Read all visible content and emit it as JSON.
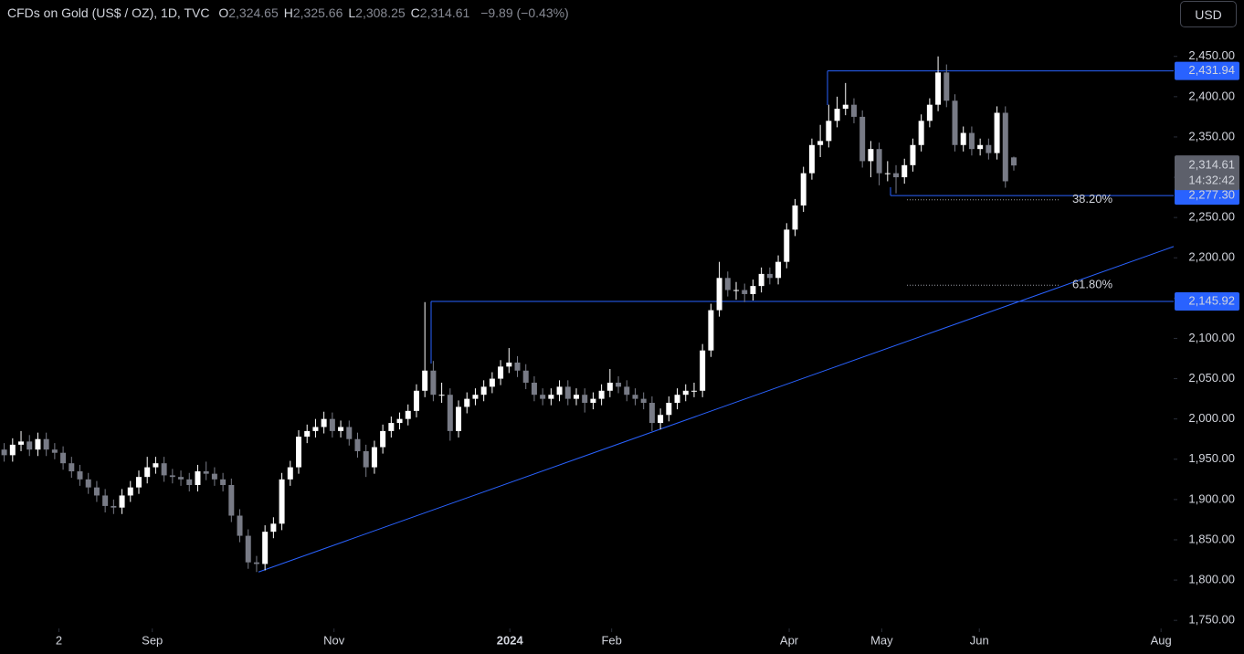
{
  "chart_data": {
    "type": "candlestick",
    "title": "CFDs on Gold (US$ / OZ), 1D, TVC",
    "ohlc_legend": {
      "labels": [
        "O",
        "H",
        "L",
        "C"
      ],
      "values": [
        2324.65,
        2325.66,
        2308.25,
        2314.61
      ],
      "value_labels": [
        "2,324.65",
        "2,325.66",
        "2,308.25",
        "2,314.61"
      ]
    },
    "change": {
      "value": -9.89,
      "label": "−9.89"
    },
    "change_percent": {
      "value": -0.43,
      "label": "(−0.43%)"
    },
    "currency": "USD",
    "open": [
      1962,
      1955,
      1968,
      1972,
      1962,
      1975,
      1962,
      1958,
      1945,
      1935,
      1925,
      1915,
      1905,
      1892,
      1890,
      1905,
      1915,
      1928,
      1940,
      1945,
      1930,
      1928,
      1925,
      1918,
      1935,
      1932,
      1925,
      1918,
      1880,
      1855,
      1822,
      1820,
      1860,
      1870,
      1925,
      1940,
      1978,
      1985,
      1990,
      2000,
      1985,
      1990,
      1975,
      1960,
      1940,
      1965,
      1985,
      1995,
      2000,
      2010,
      2035,
      2060,
      2030,
      2030,
      1985,
      2015,
      2025,
      2030,
      2040,
      2050,
      2065,
      2070,
      2060,
      2045,
      2030,
      2025,
      2030,
      2040,
      2025,
      2030,
      2020,
      2025,
      2035,
      2045,
      2040,
      2030,
      2025,
      2020,
      1995,
      2005,
      2020,
      2030,
      2035,
      2035,
      2085,
      2135,
      2175,
      2160,
      2160,
      2155,
      2165,
      2180,
      2175,
      2195,
      2235,
      2265,
      2305,
      2340,
      2345,
      2370,
      2385,
      2390,
      2375,
      2320,
      2335,
      2305,
      2305,
      2300,
      2315,
      2340,
      2370,
      2390,
      2430,
      2395,
      2340,
      2355,
      2335,
      2340,
      2330,
      2380,
      2324.65
    ],
    "high": [
      1970,
      1976,
      1985,
      1980,
      1983,
      1983,
      1970,
      1966,
      1953,
      1943,
      1933,
      1923,
      1913,
      1900,
      1913,
      1923,
      1936,
      1953,
      1953,
      1953,
      1938,
      1936,
      1933,
      1943,
      1947,
      1940,
      1933,
      1926,
      1888,
      1863,
      1830,
      1868,
      1878,
      1933,
      1948,
      1986,
      1993,
      2000,
      2009,
      2008,
      1998,
      1998,
      1983,
      1968,
      1973,
      1993,
      2003,
      2008,
      2018,
      2043,
      2145,
      2072,
      2045,
      2038,
      2023,
      2033,
      2038,
      2048,
      2058,
      2073,
      2088,
      2078,
      2068,
      2053,
      2038,
      2038,
      2048,
      2048,
      2038,
      2038,
      2033,
      2043,
      2062,
      2053,
      2048,
      2038,
      2033,
      2028,
      2013,
      2028,
      2038,
      2043,
      2045,
      2093,
      2143,
      2195,
      2183,
      2170,
      2168,
      2173,
      2188,
      2188,
      2203,
      2243,
      2273,
      2313,
      2348,
      2365,
      2390,
      2400,
      2417,
      2398,
      2383,
      2345,
      2343,
      2320,
      2315,
      2323,
      2348,
      2378,
      2398,
      2450,
      2440,
      2403,
      2363,
      2363,
      2348,
      2348,
      2388,
      2388,
      2325.66
    ],
    "low": [
      1947,
      1947,
      1960,
      1954,
      1954,
      1954,
      1950,
      1937,
      1927,
      1917,
      1907,
      1897,
      1884,
      1882,
      1882,
      1897,
      1907,
      1920,
      1932,
      1922,
      1920,
      1917,
      1910,
      1910,
      1924,
      1917,
      1910,
      1872,
      1847,
      1814,
      1810,
      1812,
      1852,
      1862,
      1917,
      1932,
      1970,
      1977,
      1982,
      1977,
      1977,
      1967,
      1952,
      1928,
      1932,
      1957,
      1977,
      1987,
      1992,
      2002,
      2027,
      2022,
      2020,
      1973,
      1977,
      2007,
      2017,
      2022,
      2032,
      2042,
      2057,
      2052,
      2037,
      2022,
      2017,
      2017,
      2022,
      2017,
      2017,
      2008,
      2012,
      2017,
      2027,
      2032,
      2022,
      2017,
      2012,
      1985,
      1987,
      1997,
      2012,
      2022,
      2027,
      2027,
      2077,
      2127,
      2152,
      2148,
      2145,
      2147,
      2157,
      2167,
      2167,
      2187,
      2227,
      2257,
      2297,
      2325,
      2337,
      2362,
      2377,
      2367,
      2312,
      2300,
      2290,
      2295,
      2280,
      2292,
      2307,
      2332,
      2362,
      2382,
      2387,
      2332,
      2332,
      2327,
      2327,
      2322,
      2322,
      2287,
      2308.25
    ],
    "close": [
      1955,
      1968,
      1972,
      1962,
      1975,
      1962,
      1958,
      1945,
      1935,
      1925,
      1915,
      1905,
      1892,
      1890,
      1905,
      1915,
      1928,
      1940,
      1945,
      1930,
      1928,
      1925,
      1918,
      1935,
      1932,
      1925,
      1918,
      1880,
      1855,
      1822,
      1820,
      1860,
      1870,
      1925,
      1940,
      1978,
      1985,
      1990,
      2000,
      1985,
      1990,
      1975,
      1960,
      1940,
      1965,
      1985,
      1995,
      2000,
      2010,
      2035,
      2060,
      2030,
      2030,
      1985,
      2015,
      2025,
      2030,
      2040,
      2050,
      2065,
      2070,
      2060,
      2045,
      2030,
      2025,
      2030,
      2040,
      2025,
      2030,
      2020,
      2025,
      2035,
      2045,
      2040,
      2030,
      2025,
      2020,
      1995,
      2005,
      2020,
      2030,
      2035,
      2035,
      2085,
      2135,
      2175,
      2160,
      2160,
      2155,
      2165,
      2180,
      2175,
      2195,
      2235,
      2265,
      2305,
      2340,
      2345,
      2370,
      2385,
      2390,
      2375,
      2320,
      2335,
      2305,
      2305,
      2300,
      2315,
      2340,
      2370,
      2390,
      2430,
      2395,
      2340,
      2355,
      2335,
      2340,
      2330,
      2380,
      2295,
      2314.61
    ],
    "up_color": "#ffffff",
    "down_color": "#787b86",
    "xlim": [
      -0.5,
      139
    ],
    "xticks": [
      {
        "value": 6.5,
        "label": "2"
      },
      {
        "value": 17.6,
        "label": "Sep"
      },
      {
        "value": 39.2,
        "label": "Nov"
      },
      {
        "value": 60.1,
        "label": "2024"
      },
      {
        "value": 72.2,
        "label": "Feb"
      },
      {
        "value": 93.3,
        "label": "Apr"
      },
      {
        "value": 104.3,
        "label": "May"
      },
      {
        "value": 115.9,
        "label": "Jun"
      },
      {
        "value": 137.5,
        "label": "Aug"
      }
    ],
    "ylim": [
      1740,
      2520
    ],
    "yticks": [
      {
        "value": 1750,
        "label": "1,750.00"
      },
      {
        "value": 1800,
        "label": "1,800.00"
      },
      {
        "value": 1850,
        "label": "1,850.00"
      },
      {
        "value": 1900,
        "label": "1,900.00"
      },
      {
        "value": 1950,
        "label": "1,950.00"
      },
      {
        "value": 2000,
        "label": "2,000.00"
      },
      {
        "value": 2050,
        "label": "2,050.00"
      },
      {
        "value": 2100,
        "label": "2,100.00"
      },
      {
        "value": 2150,
        "label": "2,150.00"
      },
      {
        "value": 2200,
        "label": "2,200.00"
      },
      {
        "value": 2250,
        "label": "2,250.00"
      },
      {
        "value": 2300,
        "label": "2,300.00"
      },
      {
        "value": 2350,
        "label": "2,350.00"
      },
      {
        "value": 2400,
        "label": "2,400.00"
      },
      {
        "value": 2450,
        "label": "2,450.00"
      }
    ],
    "levels": [
      {
        "value": 2431.94,
        "label": "2,431.94"
      },
      {
        "value": 2277.3,
        "label": "2,277.30"
      },
      {
        "value": 2145.92,
        "label": "2,145.92"
      }
    ],
    "level_color": "#2962ff",
    "last_price": {
      "value": 2314.61,
      "label": "2,314.61",
      "countdown": "14:32:42"
    },
    "fib_levels": [
      {
        "value": 38.2,
        "label": "38.20%",
        "price": 2272
      },
      {
        "value": 61.8,
        "label": "61.80%",
        "price": 2166
      }
    ],
    "trendline": [
      1810,
      2214
    ]
  }
}
